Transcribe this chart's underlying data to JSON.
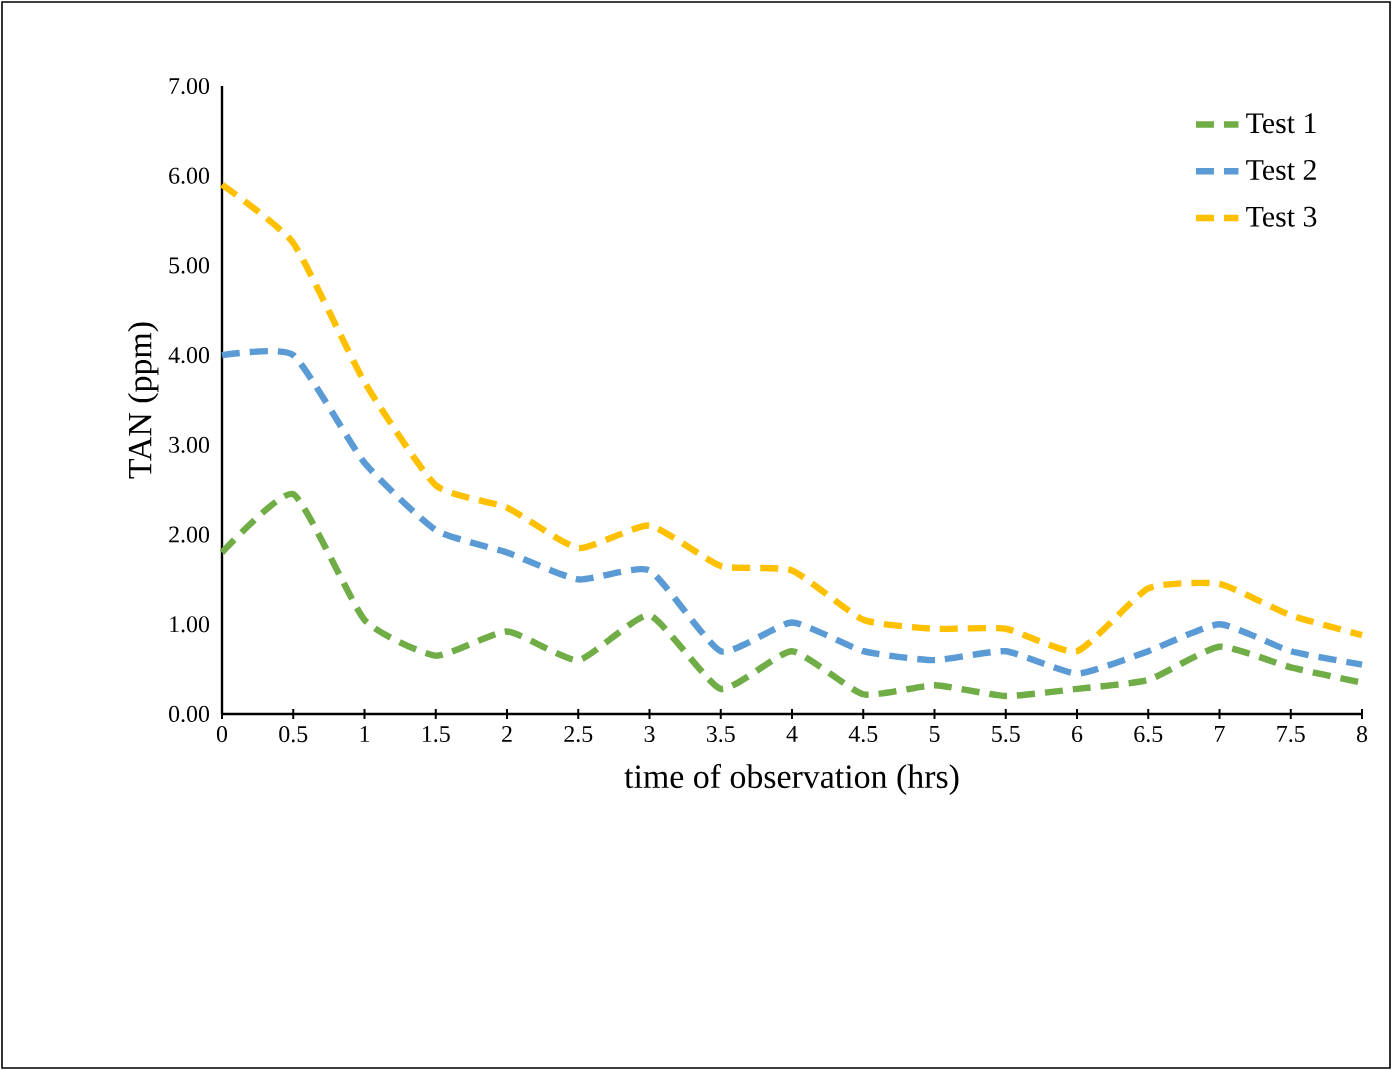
{
  "chart_data": {
    "type": "line",
    "xlabel": "time of observation (hrs)",
    "ylabel": "TAN (ppm)",
    "x": [
      0,
      0.5,
      1,
      1.5,
      2,
      2.5,
      3,
      3.5,
      4,
      4.5,
      5,
      5.5,
      6,
      6.5,
      7,
      7.5,
      8
    ],
    "series": [
      {
        "name": "Test 1",
        "color": "#70ad47",
        "values": [
          1.8,
          2.45,
          1.05,
          0.65,
          0.92,
          0.6,
          1.1,
          0.28,
          0.7,
          0.22,
          0.32,
          0.2,
          0.28,
          0.38,
          0.75,
          0.52,
          0.35
        ]
      },
      {
        "name": "Test 2",
        "color": "#5b9bd5",
        "values": [
          4.0,
          4.0,
          2.8,
          2.05,
          1.8,
          1.5,
          1.6,
          0.7,
          1.02,
          0.7,
          0.6,
          0.7,
          0.45,
          0.7,
          1.0,
          0.7,
          0.55
        ]
      },
      {
        "name": "Test 3",
        "color": "#ffc000",
        "values": [
          5.9,
          5.25,
          3.7,
          2.55,
          2.3,
          1.85,
          2.1,
          1.65,
          1.6,
          1.05,
          0.95,
          0.95,
          0.7,
          1.4,
          1.45,
          1.1,
          0.88
        ]
      }
    ],
    "xlim": [
      0,
      8
    ],
    "ylim": [
      0,
      7
    ],
    "xticks": [
      0,
      0.5,
      1,
      1.5,
      2,
      2.5,
      3,
      3.5,
      4,
      4.5,
      5,
      5.5,
      6,
      6.5,
      7,
      7.5,
      8
    ],
    "yticks": [
      {
        "value": 0,
        "label": "0.00"
      },
      {
        "value": 1,
        "label": "1.00"
      },
      {
        "value": 2,
        "label": "2.00"
      },
      {
        "value": 3,
        "label": "3.00"
      },
      {
        "value": 4,
        "label": "4.00"
      },
      {
        "value": 5,
        "label": "5.00"
      },
      {
        "value": 6,
        "label": "6.00"
      },
      {
        "value": 7,
        "label": "7.00"
      }
    ],
    "grid": false,
    "legend": "top right",
    "marker": "none",
    "line_style": "dashed"
  }
}
